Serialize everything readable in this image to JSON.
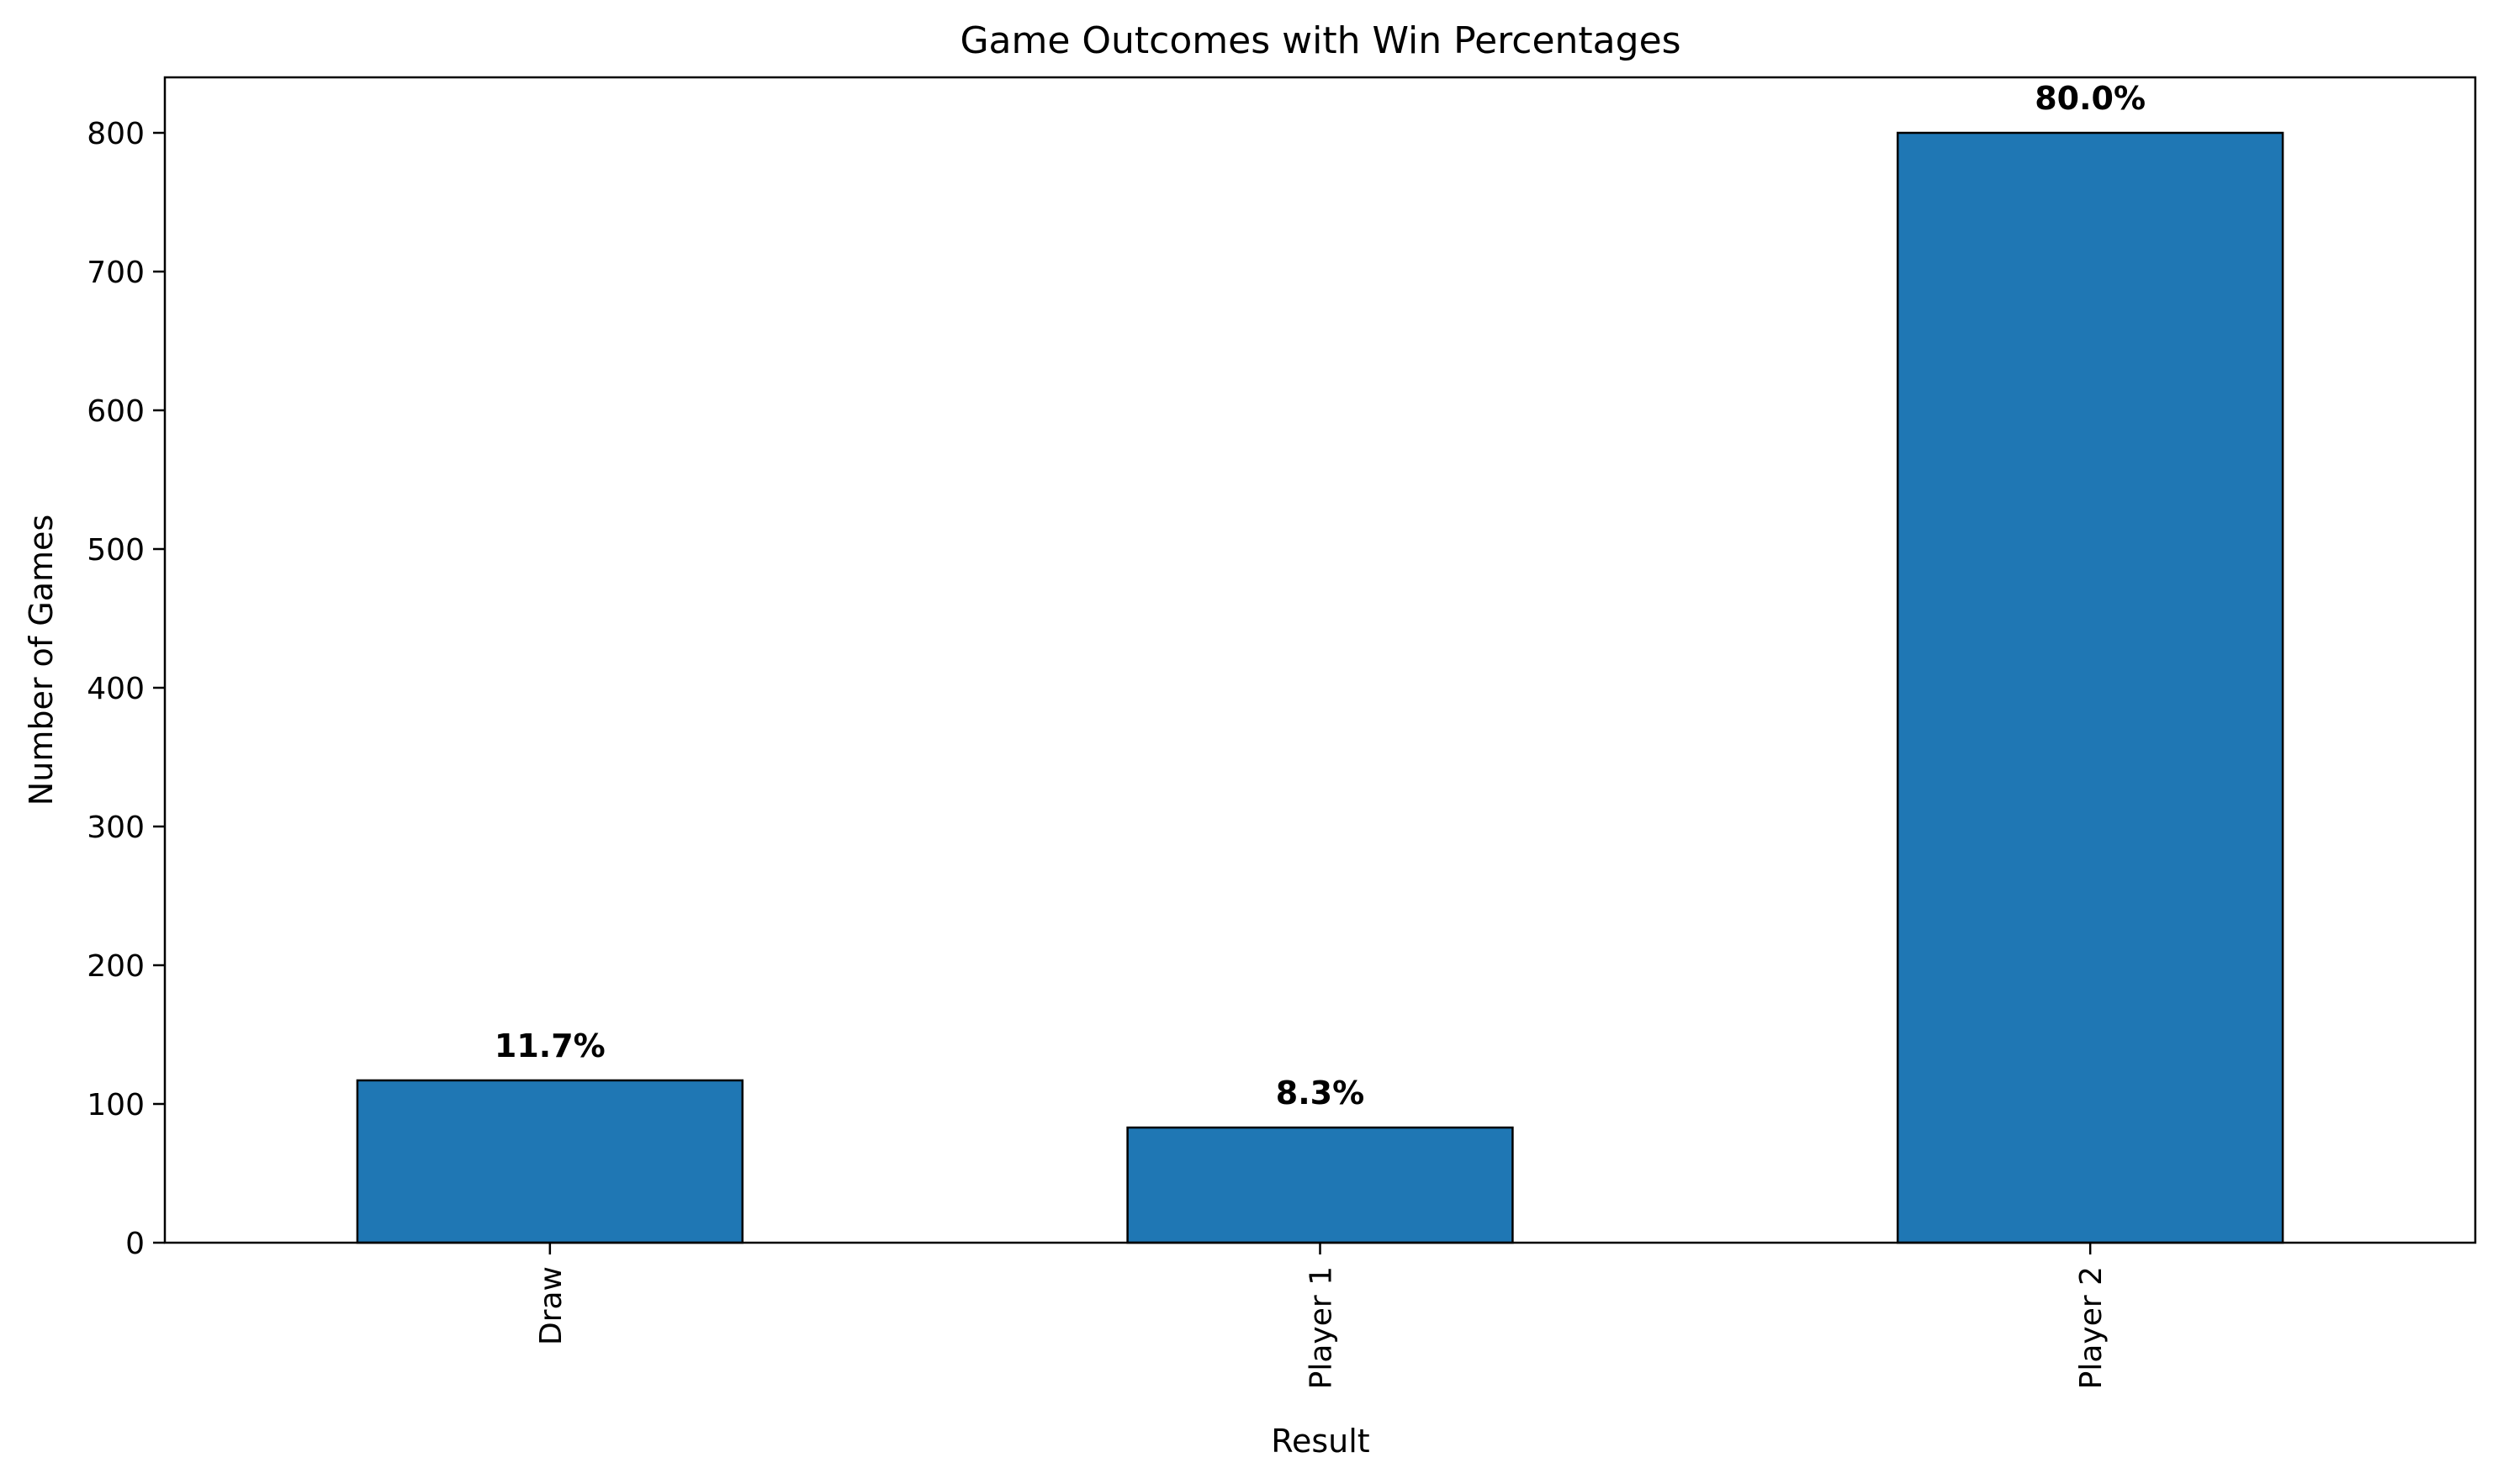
{
  "chart_data": {
    "type": "bar",
    "title": "Game Outcomes with Win Percentages",
    "xlabel": "Result",
    "ylabel": "Number of Games",
    "categories": [
      "Draw",
      "Player 1",
      "Player 2"
    ],
    "values": [
      117,
      83,
      800
    ],
    "bar_labels": [
      "11.7%",
      "8.3%",
      "80.0%"
    ],
    "ylim": [
      0,
      840
    ],
    "yticks": [
      0,
      100,
      200,
      300,
      400,
      500,
      600,
      700,
      800
    ],
    "ytick_labels": [
      "0",
      "100",
      "200",
      "300",
      "400",
      "500",
      "600",
      "700",
      "800"
    ],
    "xtick_rotation": "vertical",
    "grid": false,
    "legend": "none",
    "colors": {
      "bar_fill": "#1f77b4",
      "bar_edge": "#000000"
    }
  }
}
